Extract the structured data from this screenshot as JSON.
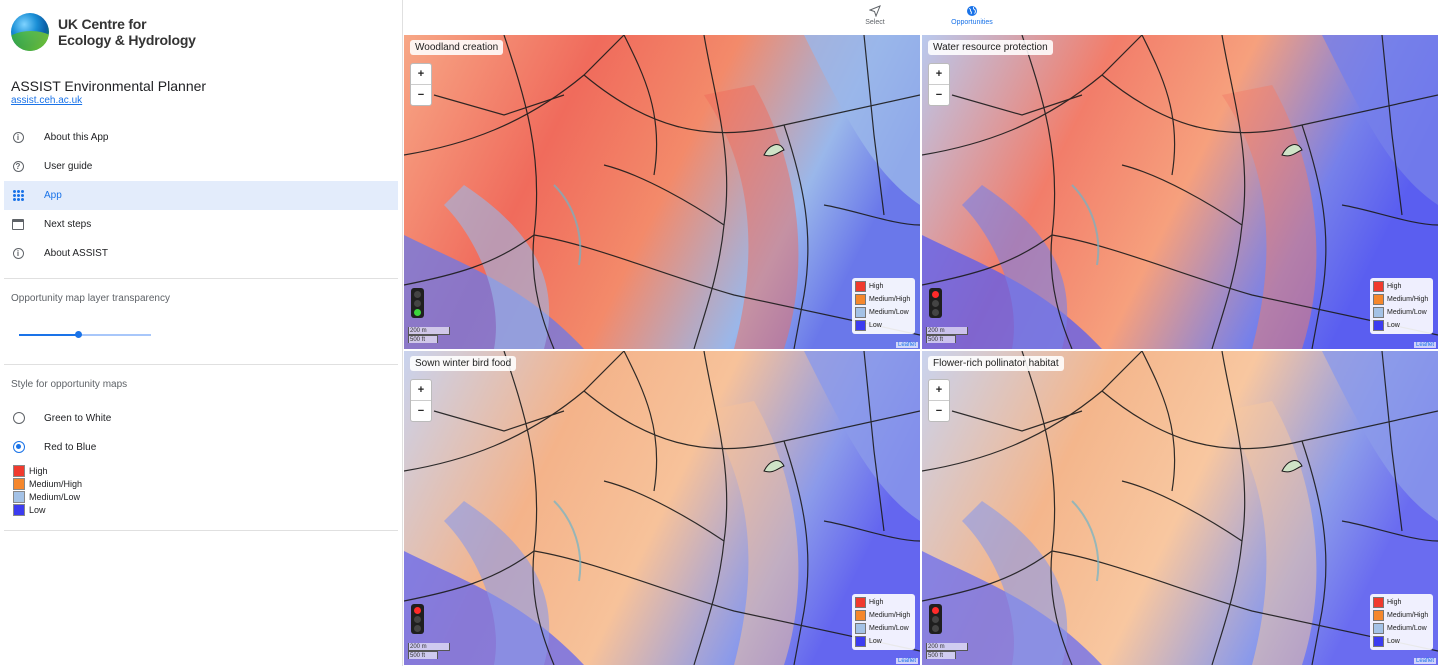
{
  "logo": {
    "line1": "UK Centre for",
    "line2": "Ecology & Hydrology"
  },
  "app": {
    "title": "ASSIST Environmental Planner",
    "link": "assist.ceh.ac.uk"
  },
  "nav": {
    "items": [
      {
        "label": "About this App",
        "icon": "info-icon"
      },
      {
        "label": "User guide",
        "icon": "help-icon"
      },
      {
        "label": "App",
        "icon": "apps-grid-icon",
        "active": true
      },
      {
        "label": "Next steps",
        "icon": "calendar-icon"
      },
      {
        "label": "About ASSIST",
        "icon": "info-icon"
      }
    ]
  },
  "transparency": {
    "title": "Opportunity map layer transparency",
    "value": 0.45
  },
  "style": {
    "title": "Style for opportunity maps",
    "options": [
      {
        "label": "Green to White",
        "selected": false
      },
      {
        "label": "Red to Blue",
        "selected": true
      }
    ]
  },
  "legend": [
    {
      "label": "High",
      "color": "#f03a2e"
    },
    {
      "label": "Medium/High",
      "color": "#f5872c"
    },
    {
      "label": "Medium/Low",
      "color": "#a4c2e6"
    },
    {
      "label": "Low",
      "color": "#3c3cf0"
    }
  ],
  "toolbar": {
    "select_label": "Select",
    "opportunities_label": "Opportunities"
  },
  "maps": [
    {
      "title": "Woodland creation",
      "scale_m": "200 m",
      "scale_ft": "500 ft",
      "attribution": "Leaflet",
      "signal": "green"
    },
    {
      "title": "Water resource protection",
      "scale_m": "200 m",
      "scale_ft": "500 ft",
      "attribution": "Leaflet",
      "signal": "red"
    },
    {
      "title": "Sown winter bird food",
      "scale_m": "200 m",
      "scale_ft": "500 ft",
      "attribution": "Leaflet",
      "signal": "red"
    },
    {
      "title": "Flower-rich pollinator habitat",
      "scale_m": "200 m",
      "scale_ft": "500 ft",
      "attribution": "Leaflet",
      "signal": "red"
    }
  ],
  "zoom": {
    "in": "+",
    "out": "−"
  }
}
